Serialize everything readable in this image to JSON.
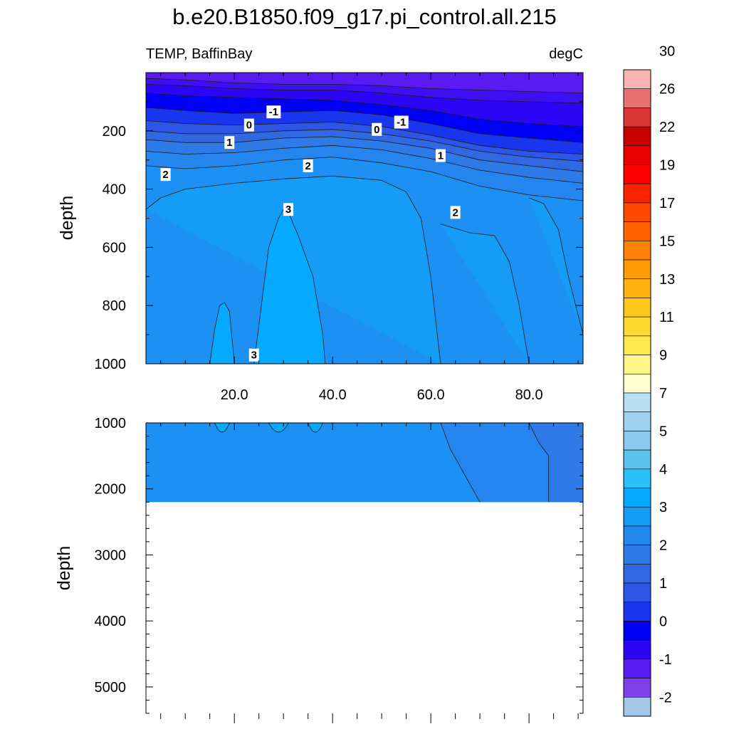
{
  "chart_data": [
    {
      "type": "heatmap",
      "panel": "upper",
      "title": "b.e20.B1850.f09_g17.pi_control.all.215",
      "left_subtitle": "TEMP, BaffinBay",
      "right_subtitle": "degC",
      "xlabel": "",
      "ylabel": "depth",
      "xlim": [
        2,
        91
      ],
      "ylim": [
        1000,
        0
      ],
      "x_ticks": [
        20,
        40,
        60,
        80
      ],
      "x_tick_labels": [
        "20.0",
        "40.0",
        "60.0",
        "80.0"
      ],
      "y_ticks": [
        200,
        400,
        600,
        800,
        1000
      ],
      "y_tick_labels": [
        "200",
        "400",
        "600",
        "800",
        "1000"
      ],
      "contour_lines": [
        {
          "level": -2,
          "x": [
            2,
            10,
            20,
            30,
            40,
            50,
            60,
            70,
            80,
            91
          ],
          "y": [
            20,
            25,
            35,
            40,
            40,
            45,
            55,
            60,
            65,
            70
          ]
        },
        {
          "level": -1.5,
          "x": [
            2,
            10,
            20,
            30,
            40,
            50,
            60,
            70,
            80,
            91
          ],
          "y": [
            40,
            45,
            55,
            60,
            60,
            70,
            85,
            95,
            100,
            105
          ]
        },
        {
          "level": -1,
          "x": [
            2,
            10,
            20,
            30,
            40,
            50,
            60,
            70,
            80,
            91
          ],
          "y": [
            70,
            80,
            85,
            90,
            95,
            110,
            130,
            160,
            175,
            185
          ]
        },
        {
          "level": -0.5,
          "x": [
            2,
            10,
            20,
            30,
            40,
            50,
            60,
            70,
            80,
            91
          ],
          "y": [
            120,
            130,
            140,
            135,
            130,
            145,
            175,
            210,
            225,
            240
          ]
        },
        {
          "level": 0,
          "x": [
            2,
            10,
            20,
            30,
            40,
            50,
            60,
            70,
            80,
            91
          ],
          "y": [
            165,
            175,
            180,
            175,
            170,
            185,
            215,
            250,
            270,
            280
          ]
        },
        {
          "level": 0.5,
          "x": [
            2,
            10,
            20,
            30,
            40,
            50,
            60,
            70,
            80,
            91
          ],
          "y": [
            200,
            210,
            210,
            200,
            195,
            210,
            235,
            270,
            290,
            305
          ]
        },
        {
          "level": 1,
          "x": [
            2,
            10,
            20,
            30,
            40,
            50,
            60,
            70,
            80,
            91
          ],
          "y": [
            230,
            240,
            240,
            225,
            220,
            235,
            260,
            300,
            320,
            340
          ]
        },
        {
          "level": 1.5,
          "x": [
            2,
            10,
            20,
            30,
            40,
            50,
            60,
            70,
            80,
            91
          ],
          "y": [
            270,
            280,
            275,
            260,
            250,
            265,
            295,
            335,
            360,
            380
          ]
        },
        {
          "level": 2,
          "x": [
            2,
            10,
            20,
            30,
            40,
            50,
            60,
            70,
            80,
            91
          ],
          "y": [
            320,
            330,
            320,
            300,
            290,
            310,
            340,
            390,
            420,
            440
          ]
        },
        {
          "level": 2.5,
          "x": [
            2,
            5,
            10,
            20,
            30,
            40,
            50,
            55,
            58,
            60,
            62
          ],
          "y": [
            470,
            430,
            400,
            380,
            365,
            355,
            370,
            410,
            500,
            700,
            1000
          ]
        },
        {
          "level": 2.5,
          "x": [
            62,
            68,
            73,
            76,
            78,
            80
          ],
          "y": [
            520,
            550,
            560,
            650,
            800,
            1000
          ]
        },
        {
          "level": 2.5,
          "x": [
            80,
            83,
            86,
            88,
            91
          ],
          "y": [
            430,
            450,
            540,
            700,
            900
          ]
        },
        {
          "level": 3,
          "x": [
            24,
            27,
            29,
            30,
            31,
            33,
            36,
            37,
            38,
            38.5
          ],
          "y": [
            1000,
            600,
            500,
            470,
            480,
            560,
            700,
            800,
            900,
            1000
          ]
        },
        {
          "level": 3,
          "x": [
            15,
            16,
            17,
            18,
            19,
            20
          ],
          "y": [
            1000,
            880,
            800,
            790,
            820,
            1000
          ]
        }
      ],
      "contour_labels": [
        {
          "text": "-1",
          "x": 28,
          "y": 135
        },
        {
          "text": "-1",
          "x": 54,
          "y": 170
        },
        {
          "text": "0",
          "x": 23,
          "y": 180
        },
        {
          "text": "0",
          "x": 49,
          "y": 195
        },
        {
          "text": "1",
          "x": 19,
          "y": 240
        },
        {
          "text": "1",
          "x": 62,
          "y": 285
        },
        {
          "text": "2",
          "x": 6,
          "y": 350
        },
        {
          "text": "2",
          "x": 35,
          "y": 320
        },
        {
          "text": "2",
          "x": 65,
          "y": 480
        },
        {
          "text": "3",
          "x": 31,
          "y": 470
        },
        {
          "text": "3",
          "x": 24,
          "y": 970
        }
      ]
    },
    {
      "type": "heatmap",
      "panel": "lower",
      "ylabel": "depth",
      "xlim": [
        2,
        91
      ],
      "ylim": [
        5400,
        1000
      ],
      "data_bottom": 2200,
      "y_ticks": [
        1000,
        2000,
        3000,
        4000,
        5000
      ],
      "y_tick_labels": [
        "1000",
        "2000",
        "3000",
        "4000",
        "5000"
      ],
      "contour_lines": [
        {
          "level": 2.5,
          "x": [
            62,
            64,
            67,
            70
          ],
          "y": [
            1000,
            1400,
            1800,
            2200
          ]
        },
        {
          "level": 2.5,
          "x": [
            80,
            82,
            84,
            84
          ],
          "y": [
            1000,
            1300,
            1500,
            2200
          ]
        }
      ]
    }
  ],
  "colorbar": {
    "orientation": "vertical",
    "colors": [
      "#a6c8e8",
      "#7f3fe8",
      "#5a1af2",
      "#2d05f5",
      "#0000f8",
      "#1a35ee",
      "#2d55e6",
      "#3068e2",
      "#2d7ae8",
      "#2189f0",
      "#149cf7",
      "#05aaff",
      "#28c0f8",
      "#5ec3f1",
      "#8ccbef",
      "#a0d3f2",
      "#b9dff3",
      "#ffffd0",
      "#fff68a",
      "#ffe74e",
      "#fed930",
      "#fdc61a",
      "#fdb210",
      "#fe9c08",
      "#fe8102",
      "#fd6400",
      "#fc4a02",
      "#fe2200",
      "#fe0000",
      "#e80000",
      "#c80000",
      "#d93535",
      "#e87171",
      "#fbb4b4"
    ],
    "labels": [
      "-2",
      "-1",
      "0",
      "1",
      "2",
      "3",
      "4",
      "5",
      "7",
      "9",
      "11",
      "13",
      "15",
      "17",
      "19",
      "22",
      "26",
      "30"
    ]
  },
  "band_colors": [
    {
      "level": -2.5,
      "color": "#5a1af2"
    },
    {
      "level": -2,
      "color": "#3d10f3"
    },
    {
      "level": -1.5,
      "color": "#2d05f5"
    },
    {
      "level": -1,
      "color": "#0000f8"
    },
    {
      "level": -0.5,
      "color": "#1a35ee"
    },
    {
      "level": 0,
      "color": "#2d55e6"
    },
    {
      "level": 0.5,
      "color": "#3068e2"
    },
    {
      "level": 1,
      "color": "#2d7ae8"
    },
    {
      "level": 1.5,
      "color": "#2585ee"
    },
    {
      "level": 2,
      "color": "#1d90f3"
    },
    {
      "level": 2.5,
      "color": "#149cf7"
    },
    {
      "level": 3,
      "color": "#05aaff"
    }
  ]
}
